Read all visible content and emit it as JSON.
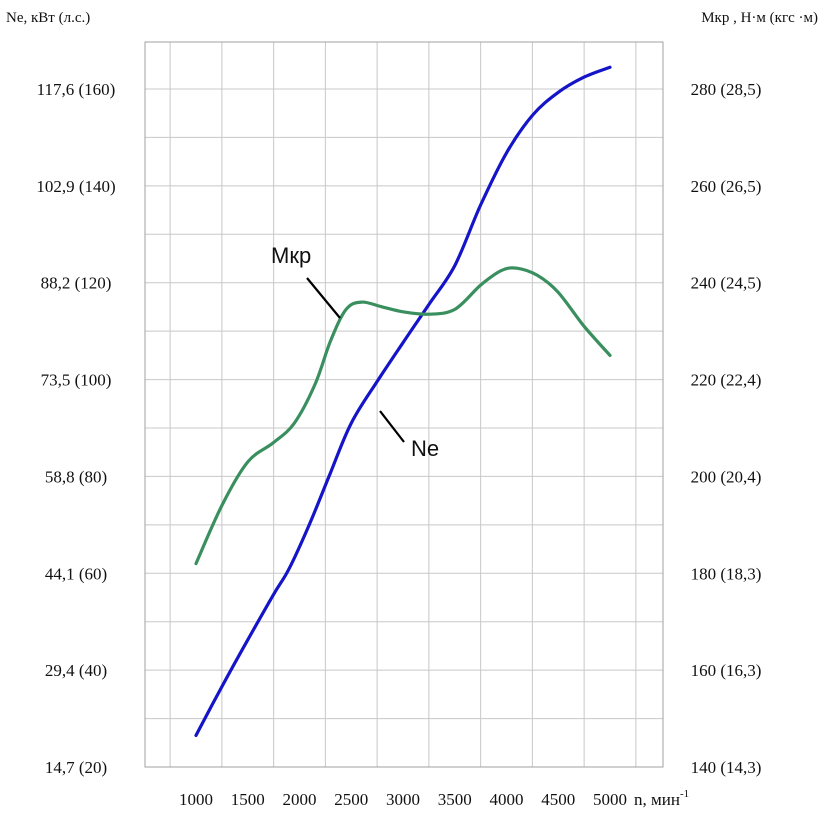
{
  "chart_data": {
    "type": "line",
    "left_axis_title": "Ne, кВт (л.с.)",
    "right_axis_title": "Мкр , Н·м (кгс ·м)",
    "x_axis_title": "n, мин",
    "x_axis_title_superscript": "-1",
    "x": [
      1000,
      1500,
      2000,
      2500,
      3000,
      3500,
      4000,
      4500,
      5000
    ],
    "x_tick_labels": [
      "1000",
      "1500",
      "2000",
      "2500",
      "3000",
      "3500",
      "4000",
      "4500",
      "5000"
    ],
    "xlim": [
      750,
      5350
    ],
    "left_ylim": [
      14.7,
      117.6
    ],
    "right_ylim": [
      140,
      280
    ],
    "left_tick_values": [
      14.7,
      29.4,
      44.1,
      58.8,
      73.5,
      88.2,
      102.9,
      117.6
    ],
    "left_tick_labels": [
      "14,7 (20)",
      "29,4 (40)",
      "44,1 (60)",
      "58,8 (80)",
      "73,5 (100)",
      "88,2 (120)",
      "102,9 (140)",
      "117,6 (160)"
    ],
    "right_tick_values": [
      140,
      160,
      180,
      200,
      220,
      240,
      260,
      280
    ],
    "right_tick_labels": [
      "140 (14,3)",
      "160 (16,3)",
      "180 (18,3)",
      "200 (20,4)",
      "220 (22,4)",
      "240 (24,5)",
      "260 (26,5)",
      "280 (28,5)"
    ],
    "grid": true,
    "series": [
      {
        "name": "Ne",
        "axis": "left",
        "color": "#1414c8",
        "x": [
          1000,
          1250,
          1500,
          1750,
          1900,
          2100,
          2300,
          2500,
          2750,
          3000,
          3250,
          3500,
          3750,
          4000,
          4250,
          4500,
          4750,
          5000
        ],
        "y": [
          19.5,
          26.9,
          34.0,
          40.9,
          44.8,
          51.7,
          59.4,
          66.9,
          73.2,
          79.1,
          84.9,
          90.8,
          100.0,
          107.9,
          113.6,
          117.1,
          119.4,
          120.9
        ]
      },
      {
        "name": "Мкр",
        "axis": "right",
        "color": "#3a8f5f",
        "x": [
          1000,
          1250,
          1500,
          1750,
          1950,
          2150,
          2300,
          2450,
          2600,
          2800,
          3000,
          3250,
          3500,
          3750,
          3950,
          4100,
          4300,
          4500,
          4750,
          5000
        ],
        "y": [
          182,
          194,
          203,
          207,
          211,
          219,
          228,
          234.5,
          236,
          235,
          234,
          233.5,
          234.5,
          239.5,
          242.5,
          243,
          241.5,
          238,
          231,
          225
        ]
      }
    ],
    "annotations": [
      {
        "text": "Мкр",
        "series": "Мкр"
      },
      {
        "text": "Ne",
        "series": "Ne"
      }
    ]
  }
}
